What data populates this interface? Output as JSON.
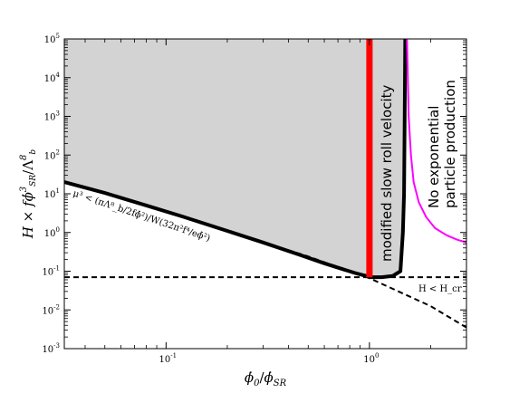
{
  "chart_data": {
    "type": "line",
    "title": "",
    "xlabel": "ϕ̇₀/ϕ̇_SR",
    "ylabel": "H × fϕ̇³_SR/Λ_b⁸",
    "xscale": "log",
    "yscale": "log",
    "xlim": [
      0.0316,
      3.0
    ],
    "ylim": [
      0.001,
      100000
    ],
    "grid": false,
    "x_ticks": [
      {
        "value": 0.1,
        "mant": "10",
        "exp": "-1"
      },
      {
        "value": 1,
        "mant": "10",
        "exp": "0"
      }
    ],
    "y_ticks": [
      {
        "value": 0.001,
        "mant": "10",
        "exp": "-3"
      },
      {
        "value": 0.01,
        "mant": "10",
        "exp": "-2"
      },
      {
        "value": 0.1,
        "mant": "10",
        "exp": "-1"
      },
      {
        "value": 1,
        "mant": "10",
        "exp": "0"
      },
      {
        "value": 10,
        "mant": "10",
        "exp": "1"
      },
      {
        "value": 100,
        "mant": "10",
        "exp": "2"
      },
      {
        "value": 1000,
        "mant": "10",
        "exp": "3"
      },
      {
        "value": 10000,
        "mant": "10",
        "exp": "4"
      },
      {
        "value": 100000,
        "mant": "10",
        "exp": "5"
      }
    ],
    "colors": {
      "shade": "#d3d3d3",
      "boundary": "#000000",
      "threshold": "#000000",
      "slow_roll": "#ff0000",
      "no_production": "#ff00ff"
    },
    "series": [
      {
        "key": "boundary",
        "style": "solid-thick",
        "x": [
          0.0316,
          0.05,
          0.08,
          0.12,
          0.2,
          0.3,
          0.45,
          0.6,
          0.75,
          0.85,
          0.92,
          0.97,
          1.0,
          1.05,
          1.15,
          1.3,
          1.42,
          1.46,
          1.48,
          1.49,
          1.5
        ],
        "y": [
          20,
          10.5,
          5.0,
          2.6,
          1.1,
          0.55,
          0.27,
          0.16,
          0.11,
          0.09,
          0.08,
          0.075,
          0.07,
          0.07,
          0.07,
          0.075,
          0.1,
          1.0,
          10,
          1000,
          100000
        ]
      },
      {
        "key": "slope",
        "style": "dashed",
        "x": [
          0.2,
          0.5,
          1.0,
          2.0,
          3.0
        ],
        "y": [
          1.1,
          0.24,
          0.066,
          0.0125,
          0.0035
        ]
      },
      {
        "key": "threshold",
        "style": "dashed",
        "x": [
          0.0316,
          3.0
        ],
        "y": [
          0.07,
          0.07
        ]
      },
      {
        "key": "no_production",
        "style": "solid-magenta",
        "x": [
          1.53,
          1.56,
          1.6,
          1.65,
          1.75,
          1.9,
          2.1,
          2.4,
          2.7,
          3.0
        ],
        "y": [
          100000,
          1000,
          100,
          20,
          6,
          2.5,
          1.3,
          0.85,
          0.65,
          0.55
        ]
      },
      {
        "key": "slow_roll",
        "style": "solid-red-band",
        "x": [
          1.0,
          1.0
        ],
        "y": [
          0.07,
          100000
        ]
      }
    ],
    "annotations": {
      "mu_text": "μ³ < (πΛ⁸_b/2fϕ̇²)/W(32π²f⁴/eϕ̇²)",
      "h_text": "H < H_cr",
      "slow_roll_text": "modified slow roll velocity",
      "no_prod_line1": "No exponential",
      "no_prod_line2": "particle production"
    }
  }
}
